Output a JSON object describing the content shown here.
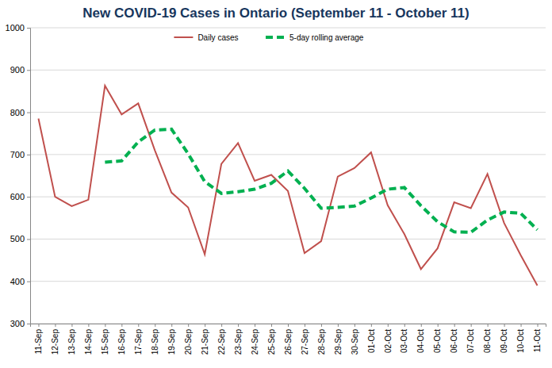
{
  "chart_data": {
    "type": "line",
    "title": "New COVID-19 Cases in Ontario (September 11 - October 11)",
    "categories": [
      "11-Sep",
      "12-Sep",
      "13-Sep",
      "14-Sep",
      "15-Sep",
      "16-Sep",
      "17-Sep",
      "18-Sep",
      "19-Sep",
      "20-Sep",
      "21-Sep",
      "22-Sep",
      "23-Sep",
      "24-Sep",
      "25-Sep",
      "26-Sep",
      "27-Sep",
      "28-Sep",
      "29-Sep",
      "30-Sep",
      "01-Oct",
      "02-Oct",
      "03-Oct",
      "04-Oct",
      "05-Oct",
      "06-Oct",
      "07-Oct",
      "08-Oct",
      "09-Oct",
      "10-Oct",
      "11-Oct"
    ],
    "series": [
      {
        "name": "Daily cases",
        "color": "#c0504d",
        "line_style": "solid",
        "values": [
          785,
          600,
          578,
          593,
          863,
          795,
          821,
          710,
          610,
          575,
          464,
          678,
          727,
          638,
          652,
          614,
          467,
          495,
          648,
          668,
          705,
          580,
          512,
          429,
          478,
          587,
          573,
          654,
          538,
          462,
          390
        ]
      },
      {
        "name": "5-day rolling average",
        "color": "#00b050",
        "line_style": "dashed",
        "values": [
          null,
          null,
          null,
          null,
          682,
          685,
          730,
          758,
          760,
          702,
          636,
          608,
          612,
          618,
          632,
          661,
          620,
          573,
          575,
          578,
          597,
          618,
          622,
          579,
          541,
          517,
          516,
          545,
          564,
          561,
          522
        ]
      }
    ],
    "ylim": [
      300,
      1000
    ],
    "yticks": [
      300,
      400,
      500,
      600,
      700,
      800,
      900,
      1000
    ],
    "grid": true,
    "legend": "top"
  }
}
